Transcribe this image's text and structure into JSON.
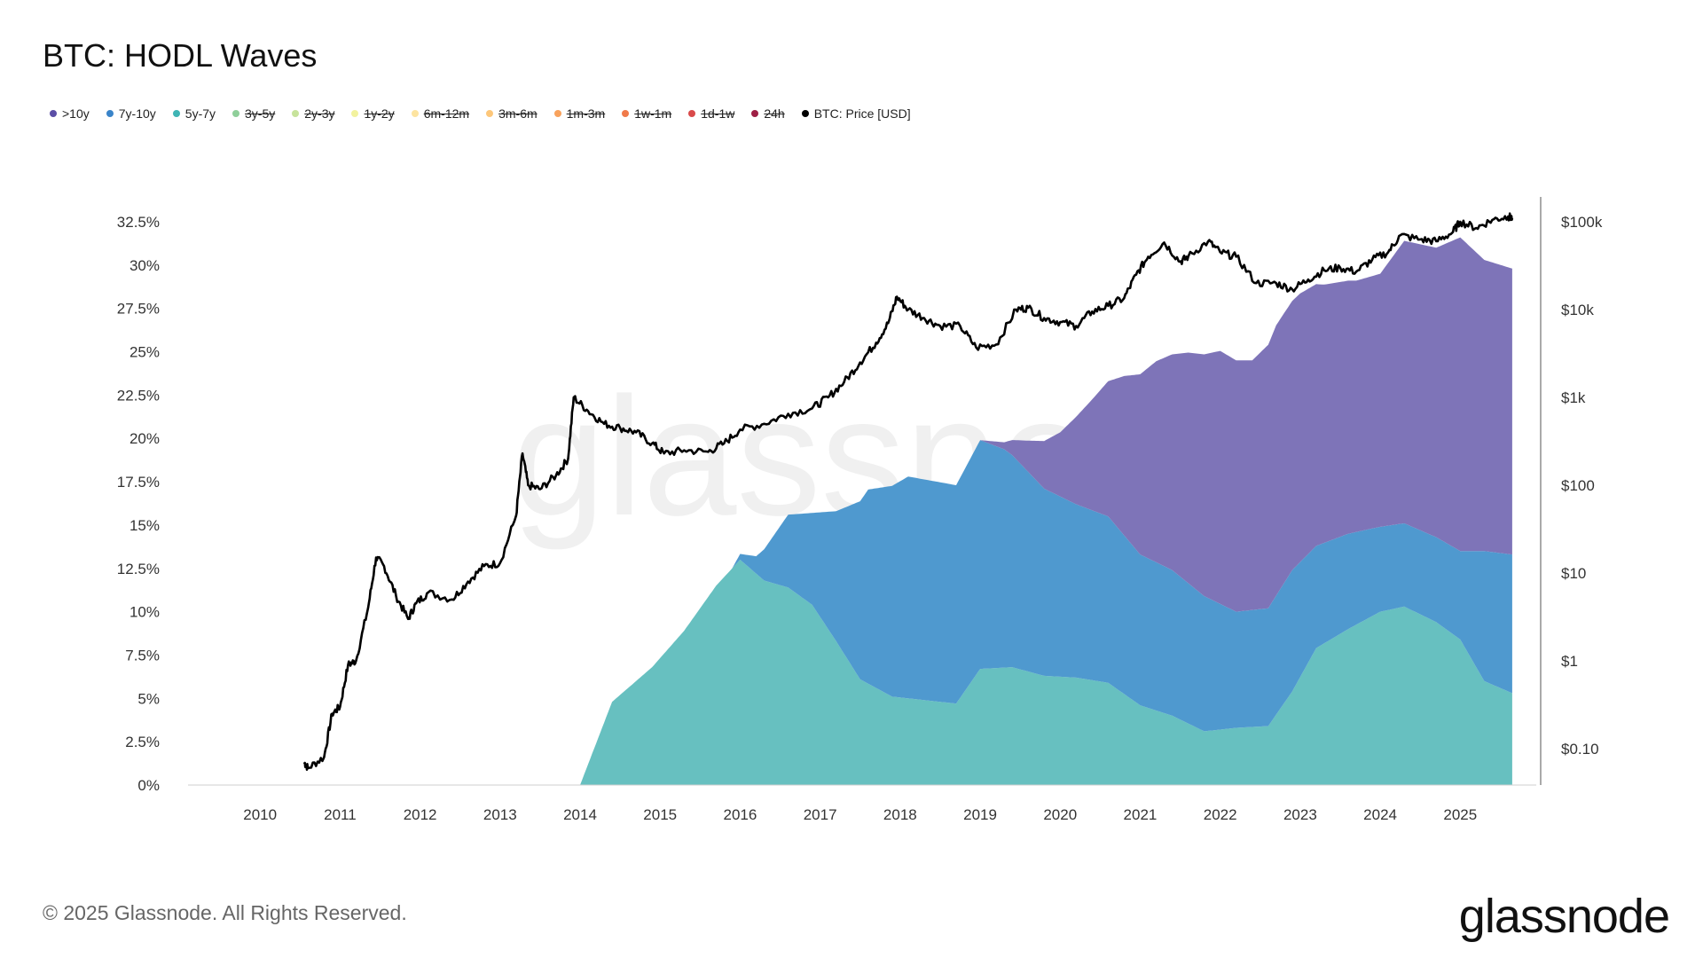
{
  "title": "BTC: HODL Waves",
  "legend": [
    {
      "label": ">10y",
      "color": "#5b4ea6",
      "active": true
    },
    {
      "label": "7y-10y",
      "color": "#3a84c9",
      "active": true
    },
    {
      "label": "5y-7y",
      "color": "#3fb5b5",
      "active": true
    },
    {
      "label": "3y-5y",
      "color": "#8fcf9a",
      "active": false
    },
    {
      "label": "2y-3y",
      "color": "#c7e39b",
      "active": false
    },
    {
      "label": "1y-2y",
      "color": "#f2f29e",
      "active": false
    },
    {
      "label": "6m-12m",
      "color": "#fde4a0",
      "active": false
    },
    {
      "label": "3m-6m",
      "color": "#fdc77a",
      "active": false
    },
    {
      "label": "1m-3m",
      "color": "#f8a25c",
      "active": false
    },
    {
      "label": "1w-1m",
      "color": "#f07a4a",
      "active": false
    },
    {
      "label": "1d-1w",
      "color": "#d94a4a",
      "active": false
    },
    {
      "label": "24h",
      "color": "#9e1f45",
      "active": false
    },
    {
      "label": "BTC: Price [USD]",
      "color": "#000000",
      "active": true
    }
  ],
  "watermark": "glassnode",
  "footer": "© 2025 Glassnode. All Rights Reserved.",
  "brand": "glassnode",
  "chart_data": {
    "type": "area",
    "x_ticks": [
      "2010",
      "2011",
      "2012",
      "2013",
      "2014",
      "2015",
      "2016",
      "2017",
      "2018",
      "2019",
      "2020",
      "2021",
      "2022",
      "2023",
      "2024",
      "2025"
    ],
    "x_range": [
      2009.1,
      2025.95
    ],
    "y_left": {
      "ticks": [
        "0%",
        "2.5%",
        "5%",
        "7.5%",
        "10%",
        "12.5%",
        "15%",
        "17.5%",
        "20%",
        "22.5%",
        "25%",
        "27.5%",
        "30%",
        "32.5%"
      ],
      "range": [
        0,
        32.5
      ],
      "unit": "%"
    },
    "y_right": {
      "ticks": [
        "$0.10",
        "$1",
        "$10",
        "$100",
        "$1k",
        "$10k",
        "$100k"
      ],
      "values": [
        0.1,
        1,
        10,
        100,
        1000,
        10000,
        100000
      ],
      "scale": "log"
    },
    "series": [
      {
        "name": "5y-7y",
        "color": "#67c0c0",
        "stack": true,
        "x": [
          2014.0,
          2014.4,
          2014.9,
          2015.3,
          2015.7,
          2016.0,
          2016.3,
          2016.6,
          2016.9,
          2017.2,
          2017.5,
          2017.9,
          2018.3,
          2018.7,
          2019.0,
          2019.4,
          2019.8,
          2020.2,
          2020.6,
          2021.0,
          2021.4,
          2021.8,
          2022.2,
          2022.6,
          2022.9,
          2023.2,
          2023.6,
          2024.0,
          2024.3,
          2024.7,
          2025.0,
          2025.3,
          2025.65
        ],
        "y": [
          0,
          4.8,
          6.8,
          8.9,
          11.5,
          13.0,
          11.8,
          11.4,
          10.4,
          8.3,
          6.1,
          5.1,
          4.9,
          4.7,
          6.7,
          6.8,
          6.3,
          6.2,
          5.9,
          4.6,
          4.0,
          3.1,
          3.3,
          3.4,
          5.4,
          7.9,
          9.0,
          10.0,
          10.3,
          9.4,
          8.4,
          6.0,
          5.3
        ]
      },
      {
        "name": "7y-10y",
        "color": "#4f99cf",
        "stack": true,
        "x": [
          2014.0,
          2015.0,
          2015.9,
          2016.2,
          2016.6,
          2016.9,
          2017.2,
          2017.6,
          2018.1,
          2018.7,
          2019.0,
          2019.3,
          2019.8,
          2020.2,
          2020.6,
          2021.0,
          2021.4,
          2021.8,
          2022.2,
          2022.6,
          2022.9,
          2023.2,
          2023.6,
          2024.0,
          2024.3,
          2024.7,
          2025.0,
          2025.3,
          2025.65
        ],
        "y": [
          0,
          0,
          0,
          1.0,
          4.2,
          5.3,
          7.5,
          11.2,
          12.8,
          12.6,
          13.2,
          12.6,
          10.8,
          10.0,
          9.6,
          8.7,
          8.4,
          7.8,
          6.7,
          6.8,
          7.0,
          5.9,
          5.5,
          4.9,
          4.8,
          4.9,
          5.1,
          7.5,
          8.0
        ]
      },
      {
        "name": ">10y",
        "color": "#7e74b8",
        "stack": true,
        "x": [
          2019.0,
          2019.3,
          2019.6,
          2020.0,
          2020.4,
          2020.8,
          2021.2,
          2021.6,
          2022.0,
          2022.4,
          2022.7,
          2023.0,
          2023.3,
          2023.7,
          2024.0,
          2024.3,
          2024.7,
          2025.0,
          2025.3,
          2025.65
        ],
        "y": [
          0,
          0.4,
          1.8,
          3.7,
          6.4,
          9.2,
          11.6,
          13.3,
          14.6,
          14.4,
          15.6,
          15.5,
          14.9,
          14.5,
          14.6,
          16.3,
          16.7,
          18.1,
          16.8,
          16.5
        ]
      },
      {
        "name": "BTC: Price [USD]",
        "color": "#000000",
        "axis": "right",
        "x": [
          2010.55,
          2010.6,
          2010.8,
          2010.9,
          2011.0,
          2011.1,
          2011.2,
          2011.35,
          2011.45,
          2011.55,
          2011.7,
          2011.85,
          2011.95,
          2012.1,
          2012.4,
          2012.6,
          2012.8,
          2013.0,
          2013.2,
          2013.28,
          2013.35,
          2013.5,
          2013.7,
          2013.85,
          2013.92,
          2014.1,
          2014.3,
          2014.5,
          2014.7,
          2014.9,
          2015.05,
          2015.3,
          2015.6,
          2015.8,
          2016.0,
          2016.3,
          2016.6,
          2016.9,
          2017.1,
          2017.3,
          2017.5,
          2017.7,
          2017.85,
          2017.96,
          2018.1,
          2018.3,
          2018.5,
          2018.75,
          2018.95,
          2019.2,
          2019.45,
          2019.6,
          2019.8,
          2020.0,
          2020.2,
          2020.4,
          2020.6,
          2020.8,
          2020.95,
          2021.1,
          2021.3,
          2021.5,
          2021.6,
          2021.85,
          2022.0,
          2022.2,
          2022.45,
          2022.7,
          2022.9,
          2023.1,
          2023.3,
          2023.5,
          2023.7,
          2023.9,
          2024.1,
          2024.25,
          2024.5,
          2024.7,
          2024.9,
          2025.0,
          2025.2,
          2025.4,
          2025.6,
          2025.65
        ],
        "y": [
          0.07,
          0.06,
          0.08,
          0.25,
          0.3,
          0.9,
          1.0,
          4.0,
          15.0,
          12.0,
          5.5,
          3.0,
          4.5,
          6.0,
          5.0,
          8.0,
          12.0,
          13.0,
          45.0,
          230,
          100,
          90,
          130,
          200,
          1000,
          700,
          500,
          450,
          400,
          300,
          230,
          250,
          240,
          300,
          430,
          500,
          650,
          750,
          1000,
          1500,
          2500,
          4200,
          7000,
          14000,
          10000,
          8000,
          6500,
          6500,
          3700,
          4000,
          10000,
          10500,
          8000,
          7200,
          6500,
          9500,
          11000,
          13500,
          25000,
          40000,
          58000,
          35000,
          40000,
          60000,
          45000,
          40000,
          20000,
          20000,
          17000,
          22000,
          28000,
          30000,
          27000,
          37000,
          45000,
          70000,
          63000,
          60000,
          75000,
          100000,
          85000,
          105000,
          115000,
          110000
        ]
      }
    ]
  }
}
